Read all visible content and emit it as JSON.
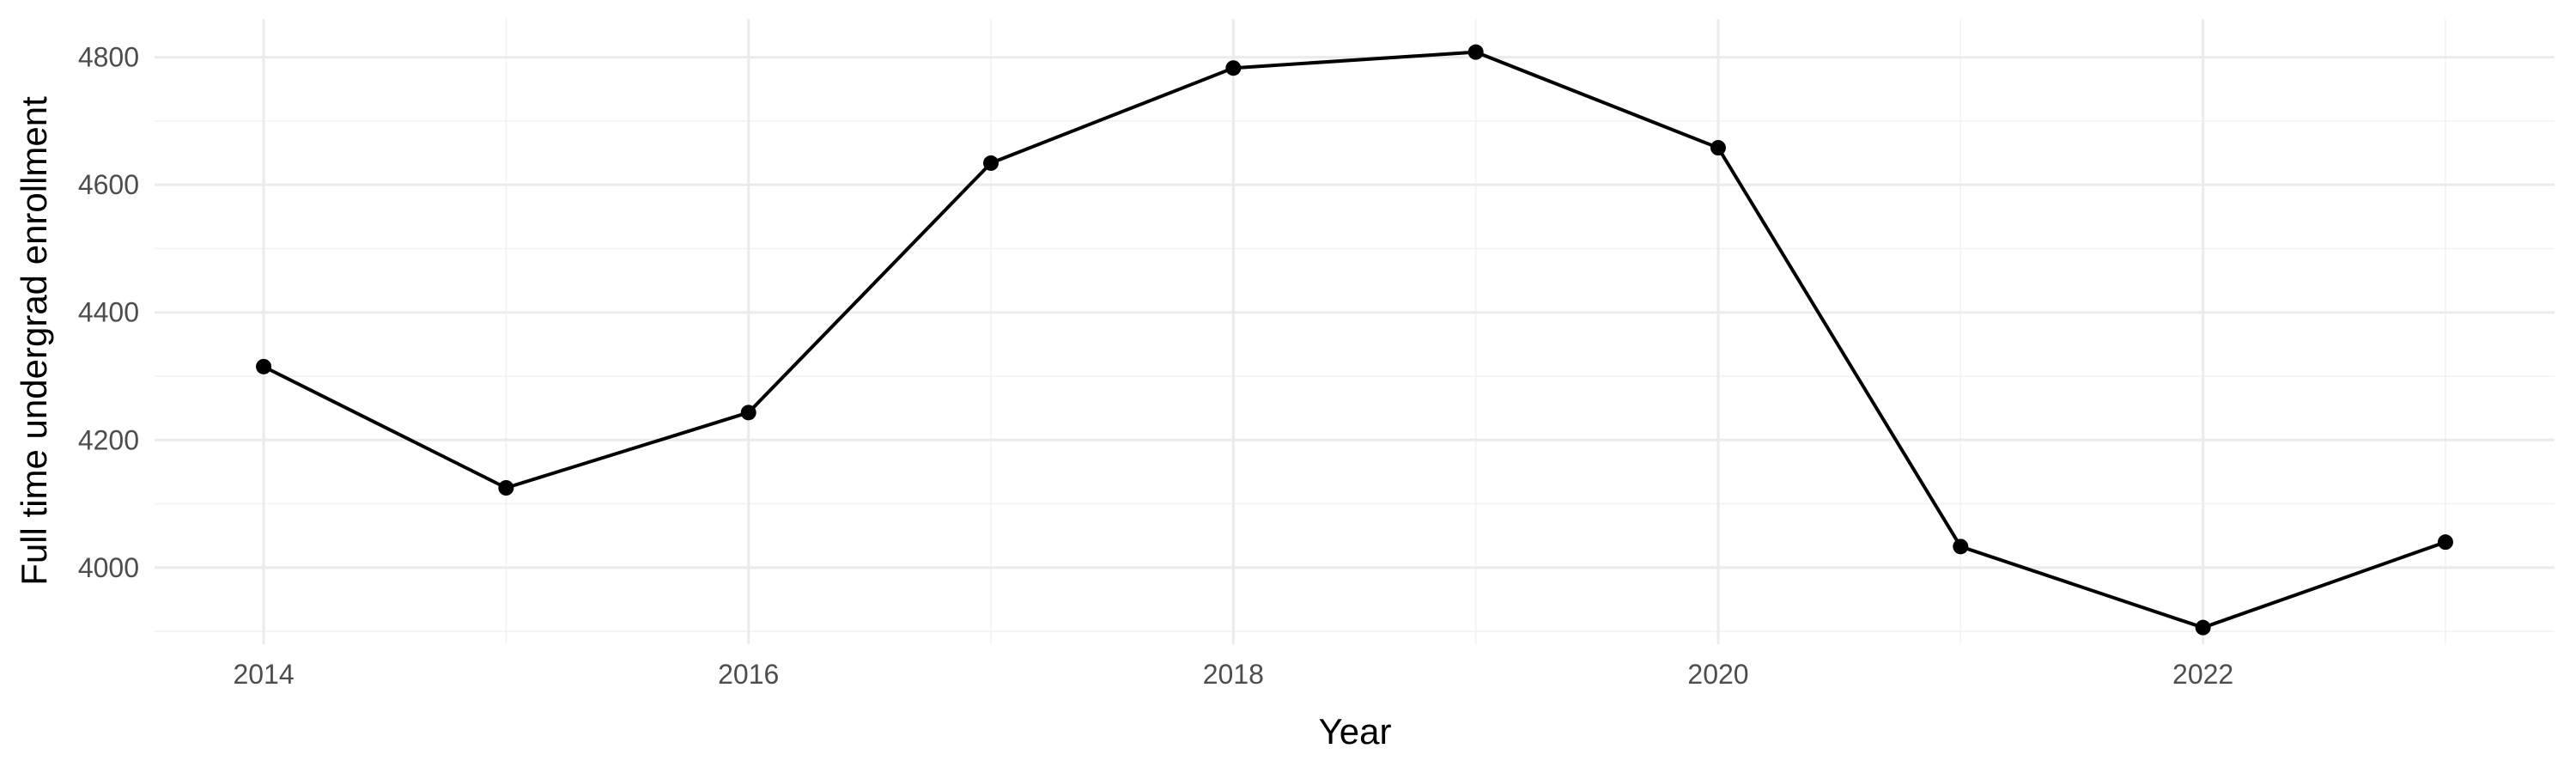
{
  "chart_data": {
    "type": "line",
    "title": "",
    "xlabel": "Year",
    "ylabel": "Full time undergrad enrollment",
    "x": [
      2014,
      2015,
      2016,
      2017,
      2018,
      2019,
      2020,
      2021,
      2022,
      2023
    ],
    "series": [
      {
        "values": [
          4315,
          4125,
          4243,
          4634,
          4783,
          4808,
          4658,
          4033,
          3906,
          4040
        ],
        "color": "#000000"
      }
    ],
    "xlim": [
      2013.55,
      2023.45
    ],
    "ylim": [
      3880,
      4860
    ],
    "x_ticks": [
      2014,
      2016,
      2018,
      2020,
      2022
    ],
    "x_tick_labels": [
      "2014",
      "2016",
      "2018",
      "2020",
      "2022"
    ],
    "x_minor_ticks": [
      2015,
      2017,
      2019,
      2021,
      2023
    ],
    "y_ticks": [
      4000,
      4200,
      4400,
      4600,
      4800
    ],
    "y_tick_labels": [
      "4000",
      "4200",
      "4400",
      "4600",
      "4800"
    ],
    "y_minor_ticks": [
      3900,
      4100,
      4300,
      4500,
      4700
    ],
    "grid": true,
    "legend": "none",
    "theme": "minimal"
  }
}
